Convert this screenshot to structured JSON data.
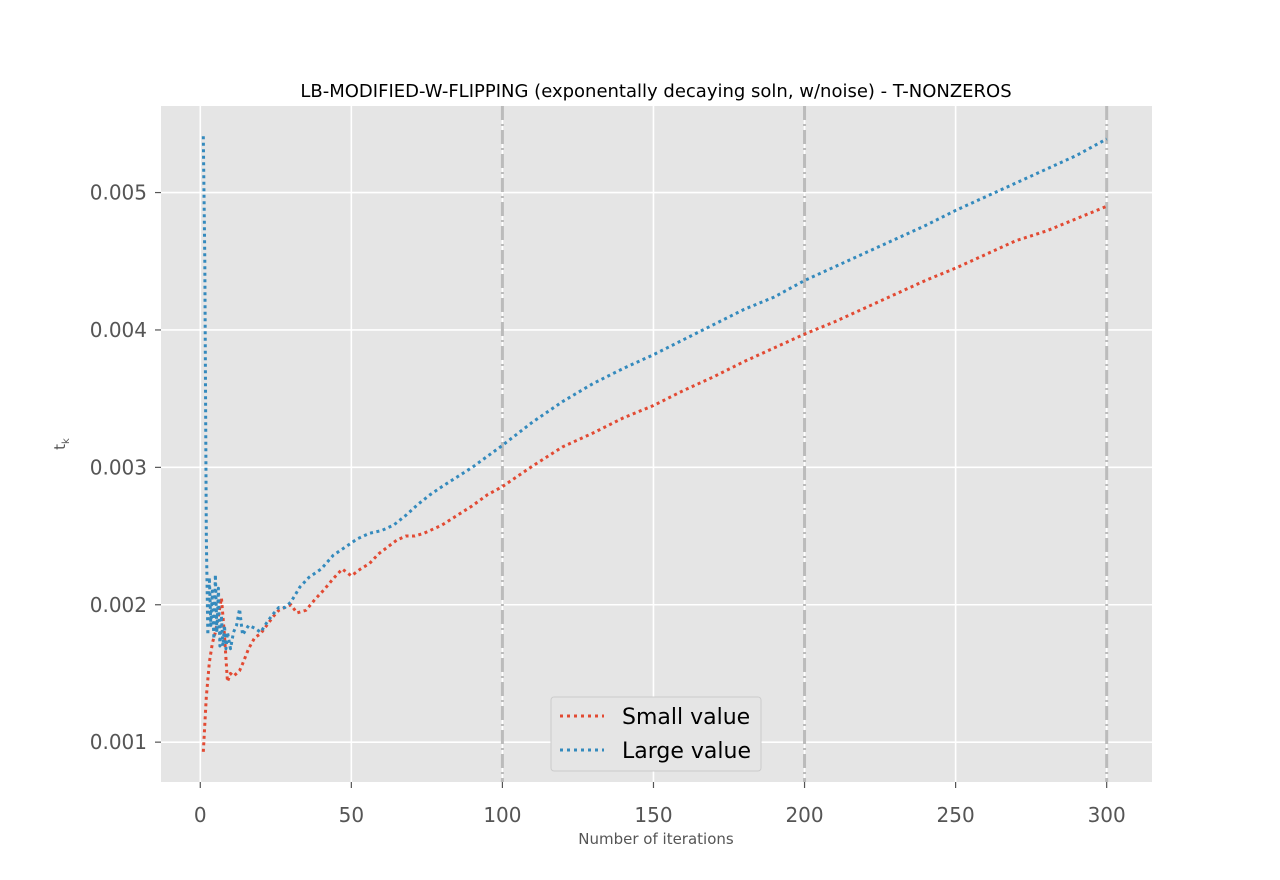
{
  "chart_data": {
    "type": "line",
    "title": "LB-MODIFIED-W-FLIPPING (exponentally decaying soln, w/noise) - T-NONZEROS",
    "xlabel": "Number of iterations",
    "ylabel_base": "t",
    "ylabel_sub": "k",
    "xlim": [
      -13,
      315
    ],
    "ylim": [
      0.00071,
      0.00563
    ],
    "xticks": [
      0,
      50,
      100,
      150,
      200,
      250,
      300
    ],
    "xtick_labels": [
      "0",
      "50",
      "100",
      "150",
      "200",
      "250",
      "300"
    ],
    "yticks": [
      0.001,
      0.002,
      0.003,
      0.004,
      0.005
    ],
    "ytick_labels": [
      "0.001",
      "0.002",
      "0.003",
      "0.004",
      "0.005"
    ],
    "vlines": [
      100,
      200,
      300
    ],
    "grid": true,
    "legend_position": "lower-center",
    "colors": {
      "background": "#e5e5e5",
      "grid": "#ffffff",
      "vline": "#bbbbbb",
      "small": "#e24a33",
      "large": "#348abd"
    },
    "series": [
      {
        "name": "Small value",
        "x": [
          1,
          2,
          3,
          4,
          5,
          6,
          7,
          8,
          9,
          10,
          11,
          12,
          13,
          14,
          16,
          18,
          20,
          22,
          24,
          26,
          28,
          30,
          32,
          35,
          38,
          41,
          44,
          47,
          50,
          53,
          56,
          59,
          62,
          65,
          68,
          71,
          74,
          77,
          80,
          85,
          90,
          95,
          100,
          110,
          120,
          130,
          140,
          150,
          160,
          170,
          180,
          190,
          200,
          210,
          220,
          230,
          240,
          250,
          260,
          270,
          280,
          290,
          300
        ],
        "y": [
          0.00093,
          0.00133,
          0.00158,
          0.00172,
          0.0018,
          0.00192,
          0.00205,
          0.00178,
          0.00144,
          0.0015,
          0.00148,
          0.0015,
          0.00152,
          0.00157,
          0.00168,
          0.00176,
          0.00179,
          0.00185,
          0.00191,
          0.00196,
          0.00198,
          0.002,
          0.00194,
          0.00196,
          0.00204,
          0.00211,
          0.00219,
          0.00226,
          0.00221,
          0.00226,
          0.0023,
          0.00237,
          0.00242,
          0.00247,
          0.0025,
          0.0025,
          0.00252,
          0.00255,
          0.00258,
          0.00265,
          0.00272,
          0.0028,
          0.00286,
          0.00301,
          0.00315,
          0.00325,
          0.00336,
          0.00345,
          0.00356,
          0.00366,
          0.00377,
          0.00387,
          0.00397,
          0.00406,
          0.00416,
          0.00426,
          0.00436,
          0.00445,
          0.00455,
          0.00465,
          0.00472,
          0.00481,
          0.0049
        ]
      },
      {
        "name": "Large value",
        "x": [
          1,
          1.5,
          2,
          2.5,
          3,
          3.5,
          4,
          4.5,
          5,
          5.5,
          6,
          6.5,
          7,
          7.5,
          8,
          8.5,
          9,
          10,
          11,
          12,
          13,
          14,
          16,
          18,
          20,
          22,
          24,
          26,
          28,
          30,
          33,
          36,
          40,
          44,
          48,
          52,
          56,
          60,
          64,
          68,
          72,
          76,
          80,
          85,
          90,
          95,
          100,
          110,
          120,
          130,
          140,
          150,
          160,
          170,
          180,
          190,
          200,
          210,
          220,
          230,
          240,
          250,
          260,
          270,
          280,
          290,
          300
        ],
        "y": [
          0.00541,
          0.0045,
          0.0025,
          0.00178,
          0.0022,
          0.00185,
          0.0021,
          0.00175,
          0.00222,
          0.0018,
          0.00212,
          0.0017,
          0.00192,
          0.0017,
          0.00185,
          0.00168,
          0.0018,
          0.00168,
          0.0018,
          0.00185,
          0.00197,
          0.00178,
          0.00185,
          0.00183,
          0.0018,
          0.00187,
          0.00193,
          0.00198,
          0.00198,
          0.00202,
          0.00213,
          0.0022,
          0.00226,
          0.00236,
          0.00242,
          0.00248,
          0.00252,
          0.00254,
          0.00258,
          0.00265,
          0.00273,
          0.0028,
          0.00286,
          0.00293,
          0.003,
          0.00308,
          0.00316,
          0.00333,
          0.00348,
          0.00361,
          0.00372,
          0.00382,
          0.00393,
          0.00404,
          0.00415,
          0.00424,
          0.00436,
          0.00446,
          0.00456,
          0.00466,
          0.00476,
          0.00487,
          0.00497,
          0.00507,
          0.00517,
          0.00527,
          0.00539
        ]
      }
    ]
  }
}
